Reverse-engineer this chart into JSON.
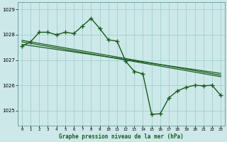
{
  "title": "Graphe pression niveau de la mer (hPa)",
  "bg_color": "#cce8e8",
  "grid_color": "#99cccc",
  "line_color": "#1a5c1a",
  "hours": [
    0,
    1,
    2,
    3,
    4,
    5,
    6,
    7,
    8,
    9,
    10,
    11,
    12,
    13,
    14,
    15,
    16,
    17,
    18,
    19,
    20,
    21,
    22,
    23
  ],
  "line_main": [
    1027.55,
    1027.72,
    1028.1,
    1028.1,
    1028.0,
    1028.1,
    1028.05,
    1028.35,
    1028.65,
    1028.25,
    1027.8,
    1027.75,
    1026.95,
    1026.55,
    1026.45,
    1024.85,
    1024.87,
    1025.5,
    1025.78,
    1025.92,
    1026.0,
    1025.98,
    1026.0,
    1025.6
  ],
  "line_trend1": [
    1027.78,
    1027.72,
    1027.66,
    1027.6,
    1027.54,
    1027.48,
    1027.42,
    1027.36,
    1027.3,
    1027.24,
    1027.18,
    1027.12,
    1027.06,
    1027.0,
    1026.94,
    1026.88,
    1026.82,
    1026.76,
    1026.7,
    1026.64,
    1026.58,
    1026.52,
    1026.46,
    1026.4
  ],
  "line_trend2": [
    1027.72,
    1027.66,
    1027.6,
    1027.54,
    1027.48,
    1027.42,
    1027.36,
    1027.3,
    1027.24,
    1027.18,
    1027.12,
    1027.06,
    1027.0,
    1026.94,
    1026.88,
    1026.82,
    1026.76,
    1026.7,
    1026.64,
    1026.58,
    1026.52,
    1026.46,
    1026.4,
    1026.34
  ],
  "line_trend3": [
    1027.62,
    1027.57,
    1027.52,
    1027.47,
    1027.42,
    1027.37,
    1027.32,
    1027.27,
    1027.22,
    1027.17,
    1027.12,
    1027.07,
    1027.02,
    1026.97,
    1026.92,
    1026.87,
    1026.82,
    1026.77,
    1026.72,
    1026.67,
    1026.62,
    1026.57,
    1026.52,
    1026.47
  ],
  "yticks": [
    1025,
    1026,
    1027,
    1028,
    1029
  ],
  "ylim": [
    1024.4,
    1029.3
  ],
  "xlim": [
    -0.5,
    23.5
  ],
  "xlabel_color": "#1a5c1a",
  "xlabel_bg": "#cce8e8"
}
